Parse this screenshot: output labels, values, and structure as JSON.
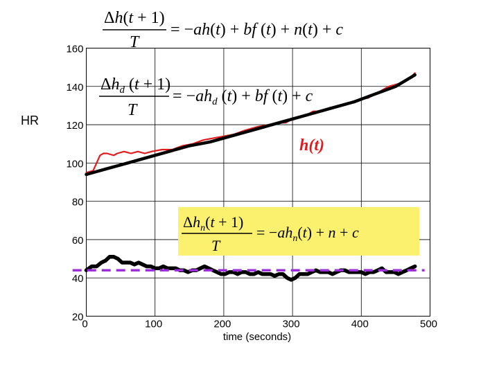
{
  "chart_data": {
    "type": "line",
    "ylabel": "HR",
    "xlabel": "time (seconds)",
    "xlim": [
      0,
      500
    ],
    "ylim": [
      20,
      160
    ],
    "xticks": [
      0,
      100,
      200,
      300,
      400,
      500
    ],
    "yticks": [
      20,
      40,
      60,
      80,
      100,
      120,
      140,
      160
    ],
    "xtick_labels": [
      "0",
      "100",
      "200",
      "300",
      "400",
      "500"
    ],
    "ytick_labels": [
      "20",
      "40",
      "60",
      "80",
      "100",
      "120",
      "140",
      "160"
    ],
    "grid": true,
    "annotation": "h(t)",
    "series": [
      {
        "color": "#e41a1c",
        "points": [
          [
            0,
            95
          ],
          [
            10,
            96
          ],
          [
            20,
            104
          ],
          [
            25,
            105
          ],
          [
            30,
            105
          ],
          [
            40,
            104
          ],
          [
            45,
            105
          ],
          [
            55,
            106
          ],
          [
            65,
            105
          ],
          [
            75,
            106
          ],
          [
            85,
            105
          ],
          [
            95,
            106
          ],
          [
            110,
            107
          ],
          [
            125,
            107
          ],
          [
            140,
            109
          ],
          [
            155,
            110
          ],
          [
            170,
            112
          ],
          [
            185,
            113
          ],
          [
            200,
            114
          ],
          [
            215,
            115
          ],
          [
            230,
            117
          ],
          [
            240,
            118
          ],
          [
            250,
            119
          ],
          [
            265,
            120
          ],
          [
            280,
            121
          ],
          [
            290,
            121
          ],
          [
            300,
            123
          ],
          [
            310,
            124
          ],
          [
            320,
            125
          ],
          [
            330,
            127
          ],
          [
            340,
            127
          ],
          [
            355,
            129
          ],
          [
            370,
            130
          ],
          [
            380,
            131
          ],
          [
            395,
            133
          ],
          [
            410,
            134
          ],
          [
            420,
            136
          ],
          [
            430,
            138
          ],
          [
            440,
            140
          ],
          [
            450,
            141
          ],
          [
            460,
            142
          ],
          [
            470,
            144
          ],
          [
            478,
            147
          ]
        ]
      },
      {
        "color": "#000000",
        "points": [
          [
            0,
            94
          ],
          [
            30,
            97
          ],
          [
            60,
            100
          ],
          [
            90,
            103
          ],
          [
            120,
            106
          ],
          [
            150,
            109
          ],
          [
            180,
            111
          ],
          [
            210,
            114
          ],
          [
            240,
            117
          ],
          [
            270,
            120
          ],
          [
            300,
            123
          ],
          [
            330,
            126
          ],
          [
            360,
            129
          ],
          [
            390,
            132
          ],
          [
            420,
            136
          ],
          [
            450,
            140
          ],
          [
            478,
            146
          ]
        ]
      },
      {
        "color": "#000000",
        "points": [
          [
            0,
            44
          ],
          [
            8,
            46
          ],
          [
            15,
            46
          ],
          [
            22,
            48
          ],
          [
            28,
            49
          ],
          [
            34,
            51
          ],
          [
            40,
            51
          ],
          [
            46,
            50
          ],
          [
            52,
            48
          ],
          [
            58,
            48
          ],
          [
            64,
            48
          ],
          [
            70,
            47
          ],
          [
            76,
            48
          ],
          [
            82,
            47
          ],
          [
            88,
            46
          ],
          [
            94,
            46
          ],
          [
            100,
            45
          ],
          [
            106,
            45
          ],
          [
            112,
            46
          ],
          [
            118,
            45
          ],
          [
            124,
            45
          ],
          [
            130,
            45
          ],
          [
            136,
            44
          ],
          [
            142,
            44
          ],
          [
            148,
            43
          ],
          [
            154,
            44
          ],
          [
            160,
            44
          ],
          [
            166,
            45
          ],
          [
            172,
            46
          ],
          [
            178,
            45
          ],
          [
            184,
            44
          ],
          [
            190,
            43
          ],
          [
            196,
            42
          ],
          [
            202,
            42
          ],
          [
            208,
            43
          ],
          [
            214,
            43
          ],
          [
            220,
            42
          ],
          [
            226,
            43
          ],
          [
            232,
            43
          ],
          [
            238,
            42
          ],
          [
            244,
            42
          ],
          [
            250,
            43
          ],
          [
            256,
            42
          ],
          [
            262,
            42
          ],
          [
            268,
            42
          ],
          [
            274,
            41
          ],
          [
            280,
            42
          ],
          [
            286,
            42
          ],
          [
            292,
            40
          ],
          [
            298,
            39
          ],
          [
            304,
            40
          ],
          [
            310,
            42
          ],
          [
            316,
            42
          ],
          [
            322,
            42
          ],
          [
            328,
            43
          ],
          [
            334,
            44
          ],
          [
            340,
            43
          ],
          [
            346,
            43
          ],
          [
            352,
            43
          ],
          [
            358,
            42
          ],
          [
            364,
            43
          ],
          [
            370,
            44
          ],
          [
            376,
            44
          ],
          [
            382,
            43
          ],
          [
            388,
            43
          ],
          [
            394,
            43
          ],
          [
            400,
            43
          ],
          [
            406,
            42
          ],
          [
            412,
            43
          ],
          [
            418,
            43
          ],
          [
            424,
            44
          ],
          [
            430,
            45
          ],
          [
            436,
            43
          ],
          [
            442,
            43
          ],
          [
            448,
            43
          ],
          [
            454,
            42
          ],
          [
            460,
            43
          ],
          [
            466,
            44
          ],
          [
            472,
            45
          ],
          [
            478,
            46
          ]
        ]
      },
      {
        "color": "#9b30d9",
        "dashed": true,
        "points": [
          [
            -20,
            44
          ],
          [
            492,
            44
          ]
        ]
      }
    ]
  },
  "equations": {
    "top": "Δh(t + 1) / T = −ah(t) + bf(t) + n(t) + c",
    "mid": "Δh_d(t + 1) / T = −ah_d(t) + bf(t) + c",
    "box": "Δh_n(t + 1) / T = −ah_n(t) + n + c",
    "box_fill": "#fbf16e"
  }
}
